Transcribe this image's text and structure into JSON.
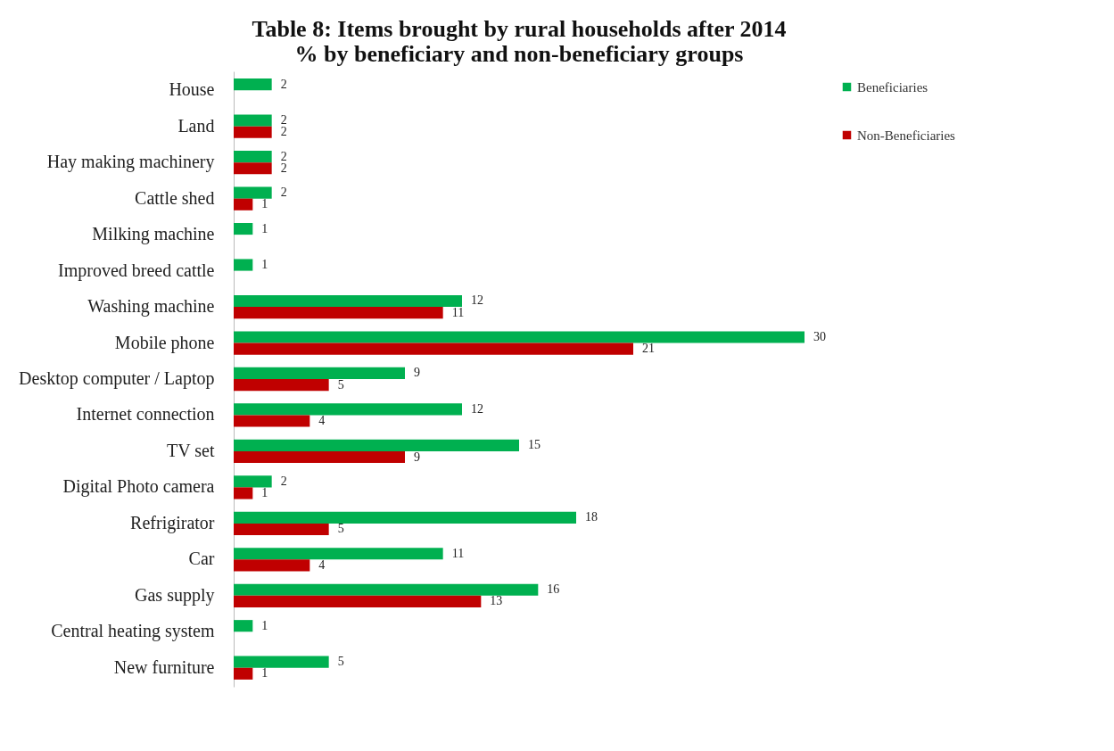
{
  "chart_data": {
    "type": "bar",
    "orientation": "horizontal",
    "title": "Table 8: Items brought by rural households after 2014\n% by beneficiary and non-beneficiary groups",
    "categories": [
      "House",
      "Land",
      "Hay making machinery",
      "Cattle shed",
      "Milking machine",
      "Improved breed cattle",
      "Washing machine",
      "Mobile phone",
      "Desktop computer / Laptop",
      "Internet connection",
      "TV set",
      "Digital Photo camera",
      "Refrigirator",
      "Car",
      "Gas supply",
      "Central heating system",
      "New furniture"
    ],
    "series": [
      {
        "name": "Beneficiaries",
        "color": "#00b050",
        "values": [
          2,
          2,
          2,
          2,
          1,
          1,
          12,
          30,
          9,
          12,
          15,
          2,
          18,
          11,
          16,
          1,
          5
        ]
      },
      {
        "name": "Non-Beneficiaries",
        "color": "#c00000",
        "values": [
          null,
          2,
          2,
          1,
          null,
          null,
          11,
          21,
          5,
          4,
          9,
          1,
          5,
          4,
          13,
          null,
          1
        ]
      }
    ],
    "data_labels": true,
    "legend": "top right"
  }
}
